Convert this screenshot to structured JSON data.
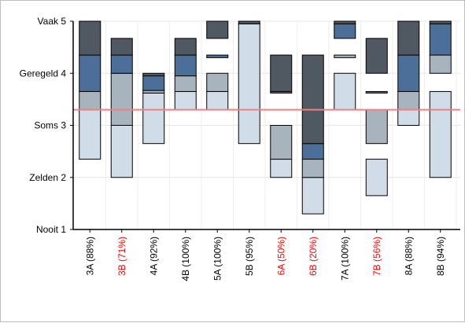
{
  "chart_data": {
    "type": "bar",
    "subtype": "floating-stacked-range",
    "y_ticks": [
      {
        "label": "Nooit 1",
        "value": 1
      },
      {
        "label": "Zelden 2",
        "value": 2
      },
      {
        "label": "Soms 3",
        "value": 3
      },
      {
        "label": "Geregeld 4",
        "value": 4
      },
      {
        "label": "Vaak 5",
        "value": 5
      }
    ],
    "ylim": [
      1,
      5
    ],
    "grid": true,
    "reference_line": {
      "value": 3.3,
      "color": "#f08080"
    },
    "segment_colors": {
      "light": "#d0dde8",
      "mid": "#a7b3bd",
      "blue": "#4b6f98",
      "dark": "#505862"
    },
    "categories": [
      {
        "label": "3A (88%)",
        "highlight": false,
        "segments": [
          {
            "from": 2.35,
            "to": 3.3,
            "shade": "light"
          },
          {
            "from": 3.3,
            "to": 3.65,
            "shade": "mid"
          },
          {
            "from": 3.65,
            "to": 4.35,
            "shade": "blue"
          },
          {
            "from": 4.35,
            "to": 5.0,
            "shade": "dark"
          }
        ]
      },
      {
        "label": "3B (71%)",
        "highlight": true,
        "segments": [
          {
            "from": 2.0,
            "to": 3.0,
            "shade": "light"
          },
          {
            "from": 3.0,
            "to": 4.0,
            "shade": "mid"
          },
          {
            "from": 4.0,
            "to": 4.35,
            "shade": "blue"
          },
          {
            "from": 4.35,
            "to": 4.67,
            "shade": "dark"
          }
        ]
      },
      {
        "label": "4A (92%)",
        "highlight": false,
        "segments": [
          {
            "from": 2.65,
            "to": 3.62,
            "shade": "light"
          },
          {
            "from": 3.62,
            "to": 3.67,
            "shade": "mid"
          },
          {
            "from": 3.67,
            "to": 3.95,
            "shade": "blue"
          },
          {
            "from": 3.95,
            "to": 4.0,
            "shade": "dark"
          }
        ]
      },
      {
        "label": "4B (100%)",
        "highlight": false,
        "segments": [
          {
            "from": 3.3,
            "to": 3.65,
            "shade": "light"
          },
          {
            "from": 3.65,
            "to": 3.95,
            "shade": "mid"
          },
          {
            "from": 3.95,
            "to": 4.35,
            "shade": "blue"
          },
          {
            "from": 4.35,
            "to": 4.67,
            "shade": "dark"
          }
        ]
      },
      {
        "label": "5A (100%)",
        "highlight": false,
        "segments": [
          {
            "from": 3.3,
            "to": 3.65,
            "shade": "light"
          },
          {
            "from": 3.65,
            "to": 4.0,
            "shade": "mid"
          },
          {
            "from": 4.3,
            "to": 4.35,
            "shade": "blue"
          },
          {
            "from": 4.67,
            "to": 5.0,
            "shade": "dark"
          }
        ]
      },
      {
        "label": "5B (95%)",
        "highlight": false,
        "segments": [
          {
            "from": 2.65,
            "to": 4.95,
            "shade": "light"
          },
          {
            "from": 4.95,
            "to": 5.0,
            "shade": "dark"
          }
        ]
      },
      {
        "label": "6A (50%)",
        "highlight": true,
        "segments": [
          {
            "from": 2.0,
            "to": 2.35,
            "shade": "light"
          },
          {
            "from": 2.35,
            "to": 3.0,
            "shade": "mid"
          },
          {
            "from": 3.62,
            "to": 3.65,
            "shade": "blue"
          },
          {
            "from": 3.65,
            "to": 4.35,
            "shade": "dark"
          }
        ]
      },
      {
        "label": "6B (20%)",
        "highlight": true,
        "segments": [
          {
            "from": 1.3,
            "to": 2.0,
            "shade": "light"
          },
          {
            "from": 2.0,
            "to": 2.35,
            "shade": "mid"
          },
          {
            "from": 2.35,
            "to": 2.65,
            "shade": "blue"
          },
          {
            "from": 2.65,
            "to": 4.35,
            "shade": "dark"
          }
        ]
      },
      {
        "label": "7A (100%)",
        "highlight": false,
        "segments": [
          {
            "from": 3.3,
            "to": 4.0,
            "shade": "light"
          },
          {
            "from": 4.3,
            "to": 4.35,
            "shade": "mid"
          },
          {
            "from": 4.67,
            "to": 4.95,
            "shade": "blue"
          },
          {
            "from": 4.95,
            "to": 5.0,
            "shade": "dark"
          }
        ]
      },
      {
        "label": "7B (56%)",
        "highlight": true,
        "segments": [
          {
            "from": 1.65,
            "to": 2.35,
            "shade": "light"
          },
          {
            "from": 2.65,
            "to": 3.3,
            "shade": "mid"
          },
          {
            "from": 3.62,
            "to": 3.65,
            "shade": "blue"
          },
          {
            "from": 4.0,
            "to": 4.67,
            "shade": "dark"
          }
        ]
      },
      {
        "label": "8A (88%)",
        "highlight": false,
        "segments": [
          {
            "from": 3.0,
            "to": 3.3,
            "shade": "light"
          },
          {
            "from": 3.3,
            "to": 3.65,
            "shade": "mid"
          },
          {
            "from": 3.65,
            "to": 4.35,
            "shade": "blue"
          },
          {
            "from": 4.35,
            "to": 5.0,
            "shade": "dark"
          }
        ]
      },
      {
        "label": "8B (94%)",
        "highlight": false,
        "segments": [
          {
            "from": 2.0,
            "to": 3.65,
            "shade": "light"
          },
          {
            "from": 4.0,
            "to": 4.35,
            "shade": "mid"
          },
          {
            "from": 4.35,
            "to": 4.95,
            "shade": "blue"
          },
          {
            "from": 4.95,
            "to": 5.0,
            "shade": "dark"
          }
        ]
      }
    ],
    "label_colors": {
      "normal": "#000000",
      "highlight": "#ff0000"
    }
  }
}
